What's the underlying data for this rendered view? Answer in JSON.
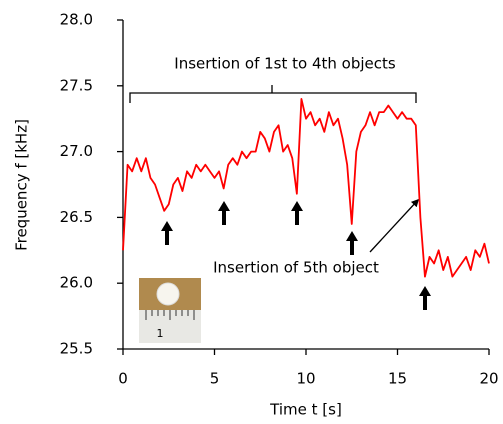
{
  "chart_data": {
    "type": "line",
    "xlabel": "Time t [s]",
    "ylabel": "Frequency f [kHz]",
    "annotations": [
      "Insertion of 1st to 4th objects",
      "Insertion of 5th object"
    ],
    "inset_scale_label": "1",
    "color": "#ff0000",
    "xlim": [
      0,
      20
    ],
    "xticks": [
      0,
      5,
      10,
      15,
      20
    ],
    "ylim": [
      25.5,
      28.0
    ],
    "yticks": [
      25.5,
      {
        "value": 26,
        "label": "26.0"
      },
      26.5,
      {
        "value": 27,
        "label": "27.0"
      },
      27.5,
      {
        "value": 28,
        "label": "28.0"
      }
    ],
    "x": [
      0,
      0.25,
      0.5,
      0.75,
      1,
      1.25,
      1.5,
      1.75,
      2,
      2.25,
      2.5,
      2.75,
      3,
      3.25,
      3.5,
      3.75,
      4,
      4.25,
      4.5,
      4.75,
      5,
      5.25,
      5.5,
      5.75,
      6,
      6.25,
      6.5,
      6.75,
      7,
      7.25,
      7.5,
      7.75,
      8,
      8.25,
      8.5,
      8.75,
      9,
      9.25,
      9.5,
      9.75,
      10,
      10.25,
      10.5,
      10.75,
      11,
      11.25,
      11.5,
      11.75,
      12,
      12.25,
      12.5,
      12.75,
      13,
      13.25,
      13.5,
      13.75,
      14,
      14.25,
      14.5,
      14.75,
      15,
      15.25,
      15.5,
      15.75,
      16,
      16.25,
      16.5,
      16.75,
      17,
      17.25,
      17.5,
      17.75,
      18,
      18.25,
      18.5,
      18.75,
      19,
      19.25,
      19.5,
      19.75,
      20
    ],
    "values": [
      26.25,
      26.9,
      26.85,
      26.95,
      26.85,
      26.95,
      26.8,
      26.75,
      26.65,
      26.55,
      26.6,
      26.75,
      26.8,
      26.7,
      26.85,
      26.8,
      26.9,
      26.85,
      26.9,
      26.85,
      26.8,
      26.85,
      26.72,
      26.9,
      26.95,
      26.9,
      27.0,
      26.95,
      27.0,
      27.0,
      27.15,
      27.1,
      27.0,
      27.15,
      27.2,
      27.0,
      27.05,
      26.95,
      26.68,
      27.4,
      27.25,
      27.3,
      27.2,
      27.25,
      27.15,
      27.3,
      27.2,
      27.25,
      27.1,
      26.9,
      26.45,
      27.0,
      27.15,
      27.2,
      27.3,
      27.2,
      27.3,
      27.3,
      27.35,
      27.3,
      27.25,
      27.3,
      27.25,
      27.25,
      27.2,
      26.5,
      26.05,
      26.2,
      26.15,
      26.25,
      26.1,
      26.2,
      26.05,
      26.1,
      26.15,
      26.2,
      26.1,
      26.25,
      26.2,
      26.3,
      26.15
    ]
  }
}
